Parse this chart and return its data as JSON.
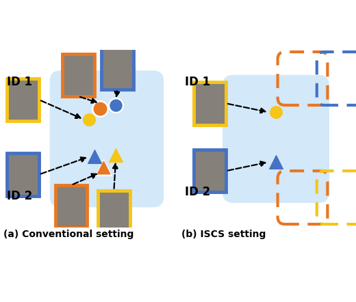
{
  "bg_color": "#ffffff",
  "light_blue_bg": "#cce4f7",
  "orange_color": "#E87722",
  "blue_color": "#4472C4",
  "yellow_color": "#F5C518",
  "title_a": "(a) Conventional setting",
  "title_b": "(b) ISCS setting",
  "label_id1": "ID 1",
  "label_id2": "ID 2",
  "title_fontsize": 10,
  "label_fontsize": 12
}
